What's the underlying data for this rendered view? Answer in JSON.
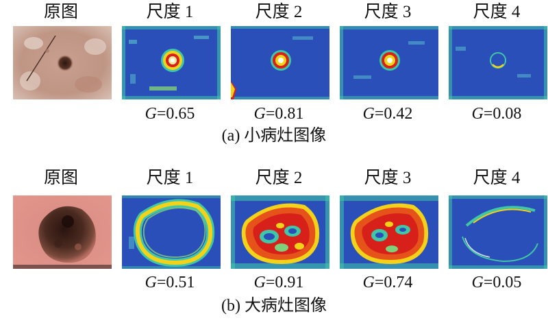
{
  "figure": {
    "headers": [
      "原图",
      "尺度 1",
      "尺度 2",
      "尺度 3",
      "尺度 4"
    ],
    "rows": [
      {
        "name": "small",
        "g_prefix": "G",
        "g_values": [
          "=0.65",
          "=0.81",
          "=0.42",
          "=0.08"
        ],
        "caption": "(a) 小病灶图像"
      },
      {
        "name": "large",
        "g_prefix": "G",
        "g_values": [
          "=0.51",
          "=0.91",
          "=0.74",
          "=0.05"
        ],
        "caption": "(b) 大病灶图像"
      }
    ]
  },
  "colors": {
    "heatmap_bg": "#2a4fb8",
    "heat_high": "#d8201a",
    "heat_mid": "#f5d21a",
    "heat_low": "#3fc7a8",
    "small_skin": "#c79d8d",
    "large_skin": "#d9827a"
  }
}
